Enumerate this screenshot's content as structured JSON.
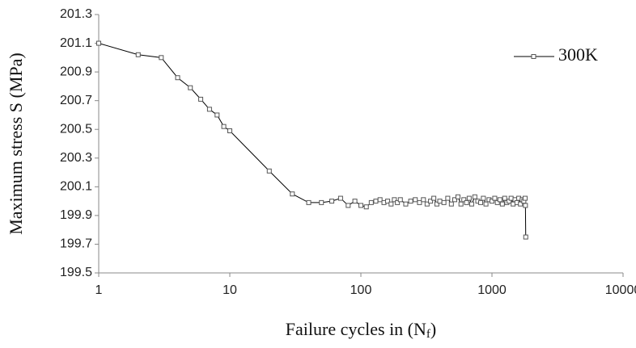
{
  "chart_data": {
    "type": "line",
    "y_label": "Maximum stress S (MPa)",
    "x_label": [
      "Failure cycles in (N",
      "f",
      ")"
    ],
    "x_log": true,
    "xlim": [
      1,
      10000
    ],
    "xticks": [
      1,
      10,
      100,
      1000,
      10000
    ],
    "ylim": [
      199.5,
      201.3
    ],
    "yticks": [
      199.5,
      199.7,
      199.9,
      200.1,
      200.3,
      200.5,
      200.7,
      200.9,
      201.1,
      201.3
    ],
    "grid": false,
    "legend": "upper right",
    "x": [
      1,
      2,
      3,
      4,
      5,
      6,
      7,
      8,
      9,
      10,
      20,
      30,
      40,
      50,
      60,
      70,
      80,
      90,
      100,
      110,
      120,
      130,
      140,
      150,
      160,
      170,
      180,
      190,
      200,
      220,
      240,
      260,
      280,
      300,
      320,
      340,
      360,
      380,
      400,
      430,
      460,
      490,
      520,
      550,
      580,
      610,
      640,
      670,
      700,
      740,
      780,
      820,
      860,
      900,
      950,
      1000,
      1050,
      1100,
      1150,
      1200,
      1250,
      1300,
      1350,
      1400,
      1450,
      1500,
      1550,
      1600,
      1650,
      1700,
      1750,
      1790,
      1800,
      1810
    ],
    "series": [
      {
        "name": "300K",
        "color": "#000000",
        "marker_color": "#555555",
        "values": [
          201.1,
          201.02,
          201.0,
          200.86,
          200.79,
          200.71,
          200.64,
          200.6,
          200.52,
          200.49,
          200.21,
          200.05,
          199.99,
          199.99,
          200.0,
          200.02,
          199.97,
          200.0,
          199.97,
          199.96,
          199.99,
          200.0,
          200.01,
          199.99,
          200.0,
          199.98,
          200.01,
          199.99,
          200.01,
          199.98,
          200.0,
          200.01,
          199.99,
          200.01,
          199.98,
          200.0,
          200.02,
          199.98,
          200.0,
          199.99,
          200.02,
          199.98,
          200.01,
          200.03,
          199.98,
          200.01,
          199.99,
          200.02,
          199.98,
          200.03,
          200.0,
          199.99,
          200.02,
          199.98,
          200.01,
          200.0,
          200.02,
          199.99,
          200.01,
          199.98,
          200.02,
          199.99,
          200.0,
          200.02,
          199.98,
          200.01,
          199.99,
          200.02,
          199.98,
          200.01,
          200.0,
          200.02,
          199.97,
          199.75
        ]
      }
    ]
  }
}
